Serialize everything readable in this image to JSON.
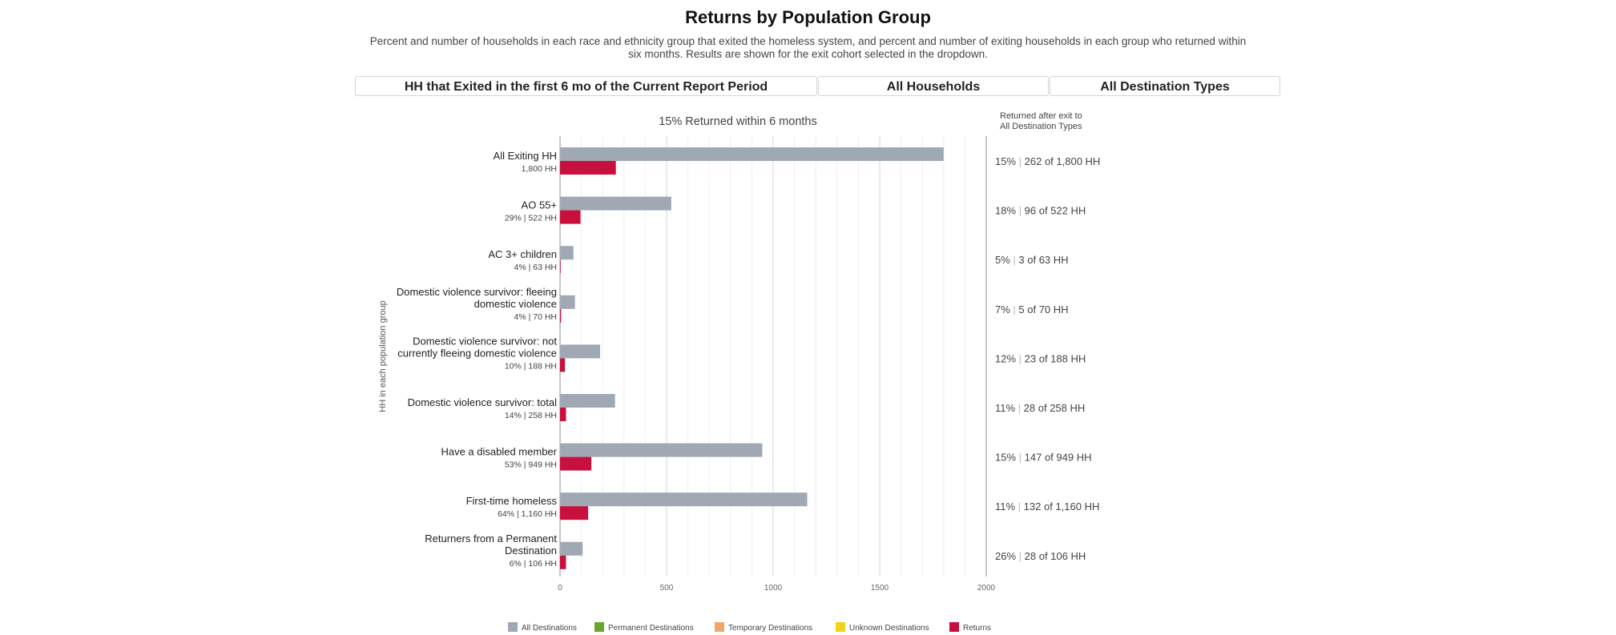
{
  "header": {
    "title": "Returns by Population Group",
    "description": "Percent and number of households in each race and ethnicity group that exited the homeless system, and percent and number of exiting households in each group who returned within six months. Results are shown for the exit cohort selected in the dropdown."
  },
  "filters": [
    {
      "label": "HH that Exited in the first 6 mo of the Current Report Period"
    },
    {
      "label": "All Households"
    },
    {
      "label": "All Destination Types"
    }
  ],
  "colors": {
    "all_destinations": "#a0a8b4",
    "permanent": "#6aa52f",
    "temporary": "#f0a66a",
    "unknown": "#f2d21c",
    "returns": "#c8103e"
  },
  "chart_data": {
    "type": "bar",
    "orientation": "horizontal",
    "title": "15% Returned within 6 months",
    "ylabel": "HH in each population group",
    "right_header": [
      "Returned after exit to",
      "All Destination Types"
    ],
    "xlim": [
      0,
      2000
    ],
    "xticks": [
      0,
      500,
      1000,
      1500,
      2000
    ],
    "grid": true,
    "categories": [
      {
        "lines": [
          "All Exiting HH"
        ],
        "sub": "1,800 HH",
        "total": 1800,
        "returns": 262,
        "right_pct": "15%",
        "right_detail": "262 of 1,800 HH"
      },
      {
        "lines": [
          "AO 55+"
        ],
        "sub": "29% | 522 HH",
        "total": 522,
        "returns": 96,
        "right_pct": "18%",
        "right_detail": "96 of 522 HH"
      },
      {
        "lines": [
          "AC 3+ children"
        ],
        "sub": "4% | 63 HH",
        "total": 63,
        "returns": 3,
        "right_pct": "5%",
        "right_detail": "3 of 63 HH"
      },
      {
        "lines": [
          "Domestic violence survivor: fleeing",
          "domestic violence"
        ],
        "sub": "4% | 70 HH",
        "total": 70,
        "returns": 5,
        "right_pct": "7%",
        "right_detail": "5 of 70 HH"
      },
      {
        "lines": [
          "Domestic violence survivor: not",
          "currently fleeing domestic violence"
        ],
        "sub": "10% | 188 HH",
        "total": 188,
        "returns": 23,
        "right_pct": "12%",
        "right_detail": "23 of 188 HH"
      },
      {
        "lines": [
          "Domestic violence survivor: total"
        ],
        "sub": "14% | 258 HH",
        "total": 258,
        "returns": 28,
        "right_pct": "11%",
        "right_detail": "28 of 258 HH"
      },
      {
        "lines": [
          "Have a disabled member"
        ],
        "sub": "53% | 949 HH",
        "total": 949,
        "returns": 147,
        "right_pct": "15%",
        "right_detail": "147 of 949 HH"
      },
      {
        "lines": [
          "First-time homeless"
        ],
        "sub": "64% | 1,160 HH",
        "total": 1160,
        "returns": 132,
        "right_pct": "11%",
        "right_detail": "132 of 1,160 HH"
      },
      {
        "lines": [
          "Returners from a Permanent",
          "Destination"
        ],
        "sub": "6% | 106 HH",
        "total": 106,
        "returns": 28,
        "right_pct": "26%",
        "right_detail": "28 of 106 HH"
      }
    ],
    "legend": {
      "placement": "bottom",
      "items": [
        {
          "label": "All Destinations",
          "color": "#a0a8b4"
        },
        {
          "label": "Permanent Destinations",
          "color": "#6aa52f"
        },
        {
          "label": "Temporary Destinations",
          "color": "#f0a66a"
        },
        {
          "label": "Unknown Destinations",
          "color": "#f2d21c"
        },
        {
          "label": "Returns",
          "color": "#c8103e"
        }
      ]
    }
  }
}
